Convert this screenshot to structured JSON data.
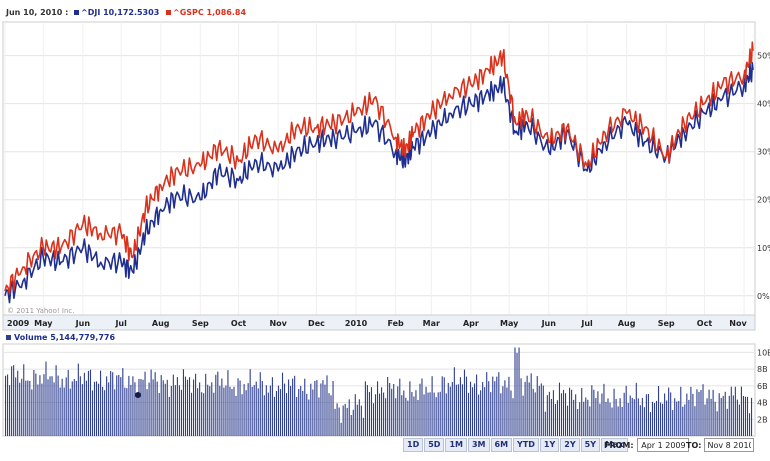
{
  "header": {
    "date": "Jun 10, 2010 :",
    "series1_label": "^DJI 10,172.5303",
    "series2_label": "^GSPC 1,086.84",
    "volume_label": "Volume 5,144,779,776",
    "copyright": "© 2011 Yahoo! Inc."
  },
  "colors": {
    "dji": "#1f2f8f",
    "gspc": "#d9311c",
    "volume": "#2f3f8f"
  },
  "controls": {
    "ranges": [
      "1D",
      "5D",
      "1M",
      "3M",
      "6M",
      "YTD",
      "1Y",
      "2Y",
      "5Y",
      "Max"
    ],
    "from_label": "FROM:",
    "from_value": "Apr 1 2009",
    "to_label": "TO:",
    "to_value": "Nov 8 2010"
  },
  "chart_data": {
    "type": "line",
    "x_ticks": [
      "2009",
      "May",
      "Jun",
      "Jul",
      "Aug",
      "Sep",
      "Oct",
      "Nov",
      "Dec",
      "2010",
      "Feb",
      "Mar",
      "Apr",
      "May",
      "Jun",
      "Jul",
      "Aug",
      "Sep",
      "Oct",
      "Nov"
    ],
    "y_ticks": [
      "0%",
      "10%",
      "20%",
      "30%",
      "40%",
      "50%"
    ],
    "ylim": [
      -4,
      57
    ],
    "x": [
      "2009-04-01",
      "2009-04-15",
      "2009-05-01",
      "2009-05-15",
      "2009-06-01",
      "2009-06-15",
      "2009-07-01",
      "2009-07-10",
      "2009-07-20",
      "2009-08-01",
      "2009-08-15",
      "2009-09-01",
      "2009-09-15",
      "2009-10-01",
      "2009-10-15",
      "2009-11-01",
      "2009-11-15",
      "2009-12-01",
      "2009-12-15",
      "2010-01-01",
      "2010-01-15",
      "2010-02-01",
      "2010-02-08",
      "2010-02-15",
      "2010-03-01",
      "2010-03-15",
      "2010-04-01",
      "2010-04-15",
      "2010-04-26",
      "2010-05-06",
      "2010-05-15",
      "2010-06-01",
      "2010-06-15",
      "2010-07-01",
      "2010-07-15",
      "2010-08-01",
      "2010-08-15",
      "2010-09-01",
      "2010-09-15",
      "2010-10-01",
      "2010-10-15",
      "2010-11-01",
      "2010-11-08"
    ],
    "series": [
      {
        "name": "^DJI",
        "values": [
          0,
          3,
          8,
          7,
          10,
          7,
          7,
          5,
          13,
          18,
          21,
          20,
          26,
          24,
          28,
          26,
          30,
          32,
          33,
          34,
          36,
          30,
          28,
          31,
          34,
          38,
          40,
          42,
          44,
          34,
          36,
          30,
          34,
          26,
          32,
          36,
          32,
          29,
          34,
          38,
          41,
          44,
          47
        ]
      },
      {
        "name": "^GSPC",
        "values": [
          1,
          6,
          10,
          10,
          15,
          13,
          13,
          8,
          18,
          23,
          26,
          27,
          31,
          28,
          33,
          30,
          35,
          35,
          36,
          38,
          41,
          33,
          30,
          34,
          38,
          42,
          44,
          47,
          50,
          36,
          38,
          32,
          35,
          27,
          34,
          38,
          35,
          29,
          36,
          40,
          44,
          46,
          51
        ]
      }
    ]
  },
  "volume_chart": {
    "type": "bar",
    "y_ticks": [
      "2B",
      "4B",
      "6B",
      "8B",
      "10B"
    ],
    "ylim": [
      0,
      11
    ]
  }
}
